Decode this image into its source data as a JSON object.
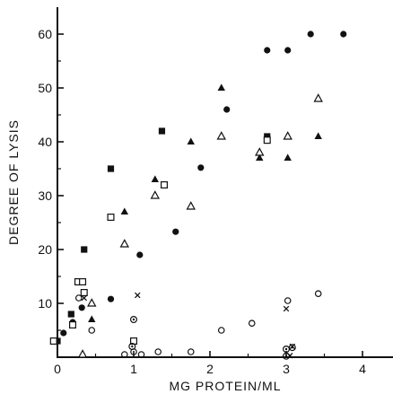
{
  "chart_data": {
    "type": "scatter",
    "title": "",
    "xlabel": "MG PROTEIN/ML",
    "ylabel": "DEGREE OF LYSIS",
    "xlim": [
      0,
      4.4
    ],
    "ylim": [
      0,
      65
    ],
    "x_ticks": [
      0,
      1,
      2,
      3,
      4
    ],
    "x_tick_labels": [
      "0",
      "1",
      "2",
      "3",
      "4"
    ],
    "y_ticks": [
      10,
      20,
      30,
      40,
      50,
      60
    ],
    "y_tick_labels": [
      "10",
      "20",
      "30",
      "40",
      "50",
      "60"
    ],
    "grid": false,
    "legend": "none",
    "series": [
      {
        "marker": "filled-circle",
        "points": [
          [
            0.08,
            4.5
          ],
          [
            0.2,
            6.5
          ],
          [
            0.32,
            9.2
          ],
          [
            0.7,
            10.8
          ],
          [
            1.08,
            19
          ],
          [
            1.55,
            23.3
          ],
          [
            1.88,
            35.2
          ],
          [
            2.22,
            46
          ],
          [
            2.75,
            57
          ],
          [
            3.02,
            57
          ],
          [
            3.32,
            60
          ],
          [
            3.75,
            60
          ]
        ]
      },
      {
        "marker": "filled-square",
        "points": [
          [
            0.0,
            3
          ],
          [
            0.18,
            8
          ],
          [
            0.35,
            20
          ],
          [
            0.7,
            35
          ],
          [
            1.37,
            42
          ],
          [
            2.75,
            41
          ]
        ]
      },
      {
        "marker": "open-square",
        "points": [
          [
            -0.05,
            3
          ],
          [
            0.2,
            6
          ],
          [
            0.27,
            14
          ],
          [
            0.33,
            14
          ],
          [
            0.35,
            12
          ],
          [
            0.7,
            26
          ],
          [
            1.0,
            3
          ],
          [
            1.4,
            32
          ],
          [
            2.75,
            40.3
          ]
        ]
      },
      {
        "marker": "filled-triangle",
        "points": [
          [
            0.45,
            7
          ],
          [
            0.88,
            27
          ],
          [
            1.28,
            33
          ],
          [
            1.75,
            40
          ],
          [
            2.15,
            50
          ],
          [
            2.65,
            37
          ],
          [
            3.02,
            37
          ],
          [
            3.42,
            41
          ]
        ]
      },
      {
        "marker": "open-triangle",
        "points": [
          [
            0.33,
            0.5
          ],
          [
            0.45,
            10
          ],
          [
            0.88,
            21
          ],
          [
            1.28,
            30
          ],
          [
            1.75,
            28
          ],
          [
            2.15,
            41
          ],
          [
            2.65,
            38
          ],
          [
            3.02,
            41
          ],
          [
            3.42,
            48
          ]
        ]
      },
      {
        "marker": "open-circle",
        "points": [
          [
            0.28,
            11
          ],
          [
            0.45,
            5
          ],
          [
            0.88,
            0.5
          ],
          [
            1.0,
            1
          ],
          [
            1.1,
            0.5
          ],
          [
            1.32,
            1
          ],
          [
            1.75,
            1
          ],
          [
            2.15,
            5
          ],
          [
            2.55,
            6.3
          ],
          [
            3.02,
            10.5
          ],
          [
            3.42,
            11.8
          ]
        ]
      },
      {
        "marker": "dotted-circle",
        "points": [
          [
            1.0,
            7
          ],
          [
            0.98,
            2
          ],
          [
            3.0,
            1.5
          ],
          [
            3.0,
            0.2
          ],
          [
            3.08,
            1.8
          ]
        ]
      },
      {
        "marker": "cross",
        "points": [
          [
            1.05,
            11.5
          ],
          [
            0.35,
            11
          ],
          [
            3.0,
            9
          ],
          [
            3.05,
            0.3
          ],
          [
            3.08,
            2
          ]
        ]
      }
    ]
  }
}
